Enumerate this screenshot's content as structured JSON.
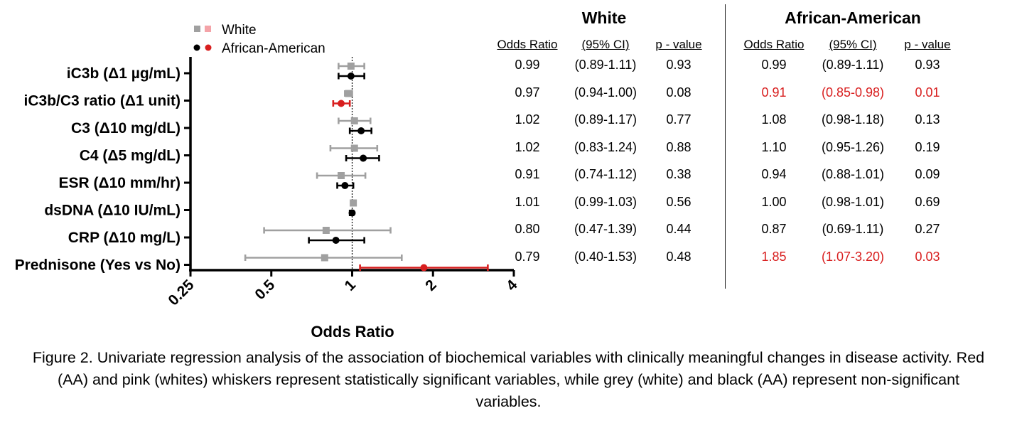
{
  "chart_data": {
    "type": "forest",
    "xlabel": "Odds Ratio",
    "xscale": "log2",
    "xlim": [
      0.25,
      4
    ],
    "xticks": [
      "0.25",
      "0.5",
      "1",
      "2",
      "4"
    ],
    "reference_line": 1,
    "legend": [
      {
        "name": "White",
        "markers": [
          "grey square",
          "pink square"
        ]
      },
      {
        "name": "African-American",
        "markers": [
          "black circle",
          "red circle"
        ]
      }
    ],
    "categories": [
      "iC3b (Δ1 µg/mL)",
      "iC3b/C3 ratio (Δ1 unit)",
      "C3 (Δ10 mg/dL)",
      "C4 (Δ5 mg/dL)",
      "ESR (Δ10 mm/hr)",
      "dsDNA (Δ10 IU/mL)",
      "CRP (Δ10 mg/L)",
      "Prednisone (Yes vs No)"
    ],
    "series": [
      {
        "name": "White",
        "or": [
          0.99,
          0.97,
          1.02,
          1.02,
          0.91,
          1.01,
          0.8,
          0.79
        ],
        "ci_low": [
          0.89,
          0.94,
          0.89,
          0.83,
          0.74,
          0.99,
          0.47,
          0.4
        ],
        "ci_high": [
          1.11,
          1.0,
          1.17,
          1.24,
          1.12,
          1.03,
          1.39,
          1.53
        ],
        "significant": [
          false,
          false,
          false,
          false,
          false,
          false,
          false,
          false
        ]
      },
      {
        "name": "African-American",
        "or": [
          0.99,
          0.91,
          1.08,
          1.1,
          0.94,
          1.0,
          0.87,
          1.85
        ],
        "ci_low": [
          0.89,
          0.85,
          0.98,
          0.95,
          0.88,
          0.98,
          0.69,
          1.07
        ],
        "ci_high": [
          1.11,
          0.98,
          1.18,
          1.26,
          1.01,
          1.01,
          1.11,
          3.2
        ],
        "significant": [
          false,
          true,
          false,
          false,
          false,
          false,
          false,
          true
        ]
      }
    ]
  },
  "colors": {
    "white_ns": "#a0a0a0",
    "white_sig": "#f4a3a8",
    "aa_ns": "#000000",
    "aa_sig": "#d81e1e"
  },
  "table": {
    "white": {
      "title": "White",
      "headers": [
        "Odds Ratio",
        "(95% CI)",
        "p - value"
      ],
      "rows": [
        [
          "0.99",
          "(0.89-1.11)",
          "0.93"
        ],
        [
          "0.97",
          "(0.94-1.00)",
          "0.08"
        ],
        [
          "1.02",
          "(0.89-1.17)",
          "0.77"
        ],
        [
          "1.02",
          "(0.83-1.24)",
          "0.88"
        ],
        [
          "0.91",
          "(0.74-1.12)",
          "0.38"
        ],
        [
          "1.01",
          "(0.99-1.03)",
          "0.56"
        ],
        [
          "0.80",
          "(0.47-1.39)",
          "0.44"
        ],
        [
          "0.79",
          "(0.40-1.53)",
          "0.48"
        ]
      ]
    },
    "aa": {
      "title": "African-American",
      "headers": [
        "Odds Ratio",
        "(95% CI)",
        "p - value"
      ],
      "rows": [
        [
          "0.99",
          "(0.89-1.11)",
          "0.93"
        ],
        [
          "0.91",
          "(0.85-0.98)",
          "0.01"
        ],
        [
          "1.08",
          "(0.98-1.18)",
          "0.13"
        ],
        [
          "1.10",
          "(0.95-1.26)",
          "0.19"
        ],
        [
          "0.94",
          "(0.88-1.01)",
          "0.09"
        ],
        [
          "1.00",
          "(0.98-1.01)",
          "0.69"
        ],
        [
          "0.87",
          "(0.69-1.11)",
          "0.27"
        ],
        [
          "1.85",
          "(1.07-3.20)",
          "0.03"
        ]
      ],
      "significant_rows": [
        1,
        7
      ]
    }
  },
  "caption": "Figure 2. Univariate regression analysis of the association of biochemical variables with clinically meaningful changes in disease activity. Red (AA) and pink (whites) whiskers represent statistically significant variables, while grey (white) and black (AA) represent non-significant variables."
}
